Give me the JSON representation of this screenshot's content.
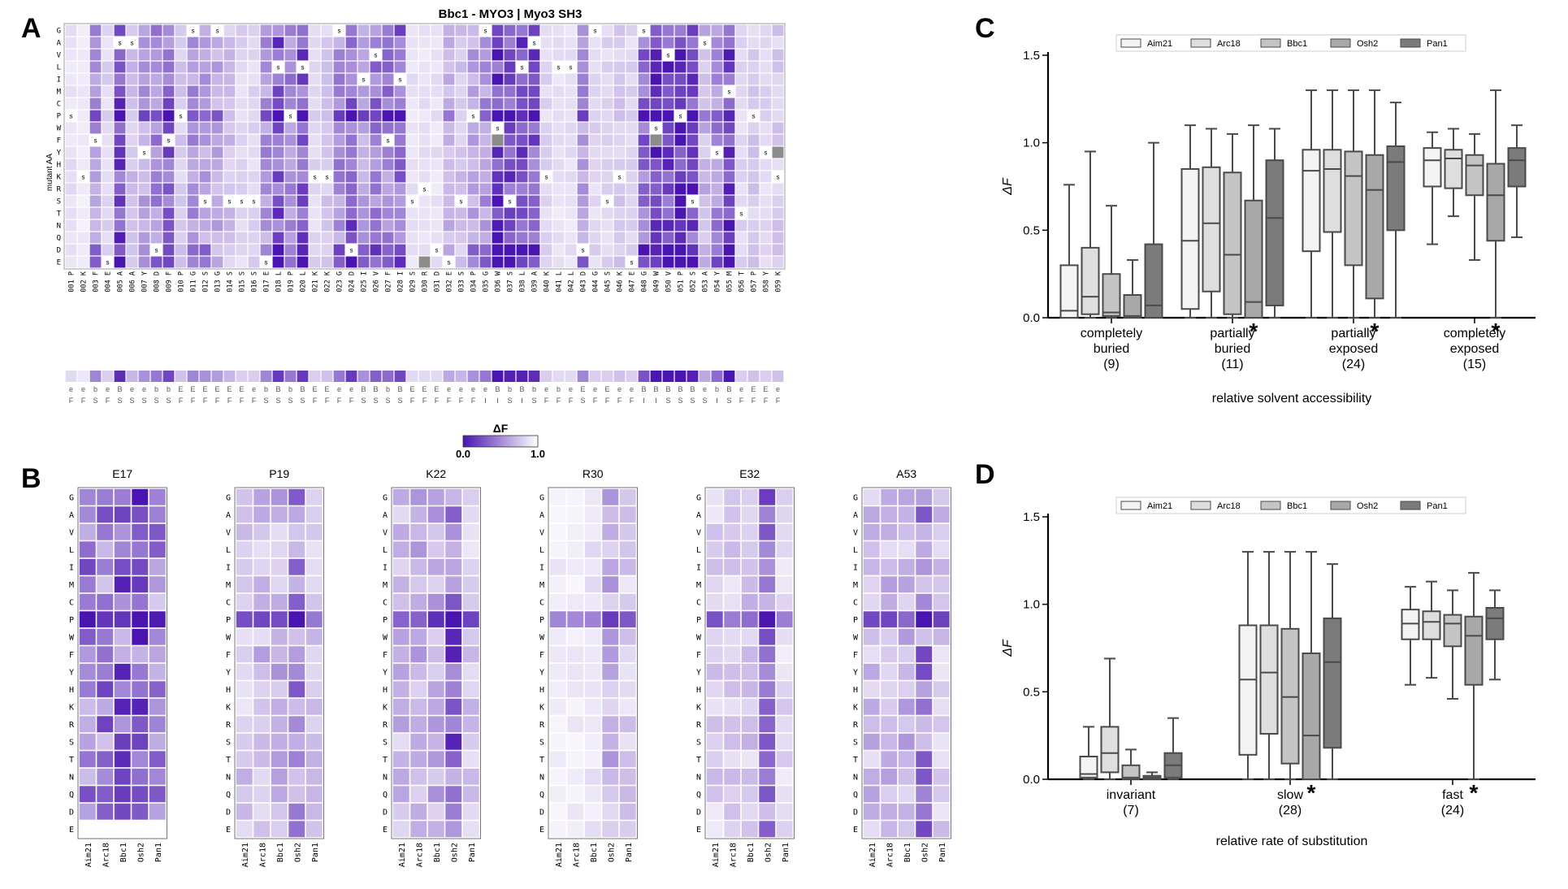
{
  "panel_letters": {
    "a": "A",
    "b": "B",
    "c": "C",
    "d": "D"
  },
  "colors": {
    "low": "#4a14b0",
    "high": "#ffffff",
    "missing": "#8c8c8c",
    "box_fill": [
      "#f3f3f3",
      "#dedede",
      "#c4c4c4",
      "#a8a8a8",
      "#7b7b7b"
    ],
    "box_stroke": "#4a4a4a"
  },
  "chart_data": [
    {
      "type": "heatmap",
      "id": "A",
      "title": "Bbc1 - MYO3 | Myo3 SH3",
      "ylabel": "mutant AA",
      "rows": [
        "G",
        "A",
        "V",
        "L",
        "I",
        "M",
        "C",
        "P",
        "W",
        "F",
        "Y",
        "H",
        "K",
        "R",
        "S",
        "T",
        "N",
        "Q",
        "D",
        "E"
      ],
      "columns": [
        "001 P",
        "002 K",
        "003 F",
        "004 E",
        "005 A",
        "006 A",
        "007 Y",
        "008 D",
        "009 F",
        "010 P",
        "011 G",
        "012 S",
        "013 G",
        "014 S",
        "015 S",
        "016 S",
        "017 E",
        "018 L",
        "019 P",
        "020 L",
        "021 K",
        "022 K",
        "023 G",
        "024 D",
        "025 I",
        "026 V",
        "027 F",
        "028 I",
        "029 S",
        "030 R",
        "031 D",
        "032 E",
        "033 S",
        "034 P",
        "035 G",
        "036 W",
        "037 S",
        "038 L",
        "039 A",
        "040 K",
        "041 L",
        "042 L",
        "043 D",
        "044 G",
        "045 S",
        "046 K",
        "047 E",
        "048 G",
        "049 W",
        "050 V",
        "051 P",
        "052 S",
        "053 A",
        "054 Y",
        "055 M",
        "056 T",
        "057 P",
        "058 Y",
        "059 K"
      ],
      "column_profile": [
        0.15,
        0.1,
        0.5,
        0.2,
        0.85,
        0.3,
        0.45,
        0.55,
        0.75,
        0.25,
        0.5,
        0.45,
        0.4,
        0.3,
        0.2,
        0.2,
        0.5,
        0.8,
        0.55,
        0.8,
        0.2,
        0.25,
        0.55,
        0.8,
        0.45,
        0.65,
        0.6,
        0.75,
        0.15,
        0.15,
        0.15,
        0.35,
        0.3,
        0.45,
        0.55,
        0.95,
        0.9,
        0.9,
        0.85,
        0.2,
        0.15,
        0.15,
        0.5,
        0.2,
        0.2,
        0.25,
        0.2,
        0.7,
        0.95,
        0.95,
        0.95,
        0.9,
        0.35,
        0.6,
        0.95,
        0.2,
        0.25,
        0.2,
        0.25
      ],
      "wild_type_marker": "s",
      "secondary_labels": {
        "bottom": [
          "e",
          "e",
          "b",
          "e",
          "B",
          "e",
          "e",
          "b",
          "b",
          "E",
          "E",
          "E",
          "E",
          "E",
          "E",
          "e",
          "b",
          "B",
          "b",
          "B",
          "E",
          "E",
          "e",
          "e",
          "B",
          "B",
          "b",
          "B",
          "E",
          "E",
          "E",
          "e",
          "e",
          "e",
          "e",
          "B",
          "b",
          "B",
          "b",
          "e",
          "b",
          "e",
          "E",
          "e",
          "E",
          "e",
          "e",
          "B",
          "B",
          "B",
          "B",
          "B",
          "e",
          "b",
          "B",
          "e",
          "E",
          "E",
          "e"
        ],
        "top": [
          "F",
          "F",
          "S",
          "F",
          "S",
          "S",
          "S",
          "S",
          "S",
          "F",
          "F",
          "F",
          "F",
          "F",
          "F",
          "F",
          "S",
          "S",
          "S",
          "S",
          "F",
          "F",
          "F",
          "F",
          "S",
          "S",
          "S",
          "S",
          "F",
          "F",
          "F",
          "F",
          "F",
          "F",
          "I",
          "I",
          "S",
          "I",
          "S",
          "F",
          "F",
          "F",
          "S",
          "F",
          "F",
          "F",
          "F",
          "I",
          "I",
          "S",
          "S",
          "S",
          "S",
          "I",
          "S",
          "F",
          "F",
          "F",
          "F"
        ]
      },
      "legend": {
        "title": "ΔF",
        "min": "0.0",
        "max": "1.0"
      }
    },
    {
      "type": "heatmap",
      "id": "B",
      "rows": [
        "G",
        "A",
        "V",
        "L",
        "I",
        "M",
        "C",
        "P",
        "W",
        "F",
        "Y",
        "H",
        "K",
        "R",
        "S",
        "T",
        "N",
        "Q",
        "D",
        "E"
      ],
      "columns": [
        "Aim21",
        "Arc18",
        "Bbc1",
        "Osh2",
        "Pan1"
      ],
      "panels": [
        {
          "title": "E17",
          "profile": [
            0.7,
            0.7,
            0.8,
            0.9,
            0.6
          ]
        },
        {
          "title": "P19",
          "profile": [
            0.3,
            0.35,
            0.4,
            0.6,
            0.3
          ]
        },
        {
          "title": "K22",
          "profile": [
            0.35,
            0.4,
            0.45,
            0.8,
            0.3
          ]
        },
        {
          "title": "R30",
          "profile": [
            0.1,
            0.1,
            0.15,
            0.4,
            0.25
          ]
        },
        {
          "title": "E32",
          "profile": [
            0.25,
            0.25,
            0.3,
            0.7,
            0.2
          ]
        },
        {
          "title": "A53",
          "profile": [
            0.35,
            0.35,
            0.4,
            0.65,
            0.3
          ]
        }
      ]
    },
    {
      "type": "box",
      "id": "C",
      "ylabel": "ΔF",
      "ylim": [
        0,
        1.5
      ],
      "yticks": [
        "0.0",
        "0.5",
        "1.0",
        "1.5"
      ],
      "legend": [
        "Aim21",
        "Arc18",
        "Bbc1",
        "Osh2",
        "Pan1"
      ],
      "legend_position": "top",
      "xlabel": "relative solvent accessibility",
      "groups": [
        {
          "label": "completely",
          "label2": "buried",
          "n": "(9)",
          "star_on": "",
          "boxes": [
            [
              0,
              0.0,
              0.04,
              0.3,
              0.76
            ],
            [
              0,
              0.02,
              0.12,
              0.4,
              0.95
            ],
            [
              0,
              0.01,
              0.03,
              0.25,
              0.64
            ],
            [
              0,
              0.0,
              0.01,
              0.13,
              0.33
            ],
            [
              0,
              0.0,
              0.07,
              0.42,
              1.0
            ]
          ]
        },
        {
          "label": "partially",
          "label2": "buried",
          "n": "(11)",
          "star_on": "Osh2",
          "boxes": [
            [
              0,
              0.05,
              0.44,
              0.85,
              1.1
            ],
            [
              0,
              0.15,
              0.54,
              0.86,
              1.08
            ],
            [
              0,
              0.02,
              0.36,
              0.83,
              1.05
            ],
            [
              0,
              0.0,
              0.09,
              0.67,
              1.1
            ],
            [
              0,
              0.07,
              0.57,
              0.9,
              1.08
            ]
          ]
        },
        {
          "label": "partially",
          "label2": "exposed",
          "n": "(24)",
          "star_on": "Osh2",
          "boxes": [
            [
              0,
              0.38,
              0.84,
              0.96,
              1.3
            ],
            [
              0,
              0.49,
              0.85,
              0.96,
              1.3
            ],
            [
              0,
              0.3,
              0.81,
              0.95,
              1.3
            ],
            [
              0,
              0.11,
              0.73,
              0.93,
              1.3
            ],
            [
              0,
              0.5,
              0.89,
              0.98,
              1.23
            ]
          ]
        },
        {
          "label": "completely",
          "label2": "exposed",
          "n": "(15)",
          "star_on": "Osh2",
          "boxes": [
            [
              0.42,
              0.75,
              0.9,
              0.97,
              1.06
            ],
            [
              0.58,
              0.74,
              0.91,
              0.96,
              1.08
            ],
            [
              0.33,
              0.7,
              0.87,
              0.93,
              1.05
            ],
            [
              0,
              0.44,
              0.7,
              0.88,
              1.3
            ],
            [
              0.46,
              0.75,
              0.9,
              0.97,
              1.1
            ]
          ]
        }
      ]
    },
    {
      "type": "box",
      "id": "D",
      "ylabel": "ΔF",
      "ylim": [
        0,
        1.5
      ],
      "yticks": [
        "0.0",
        "0.5",
        "1.0",
        "1.5"
      ],
      "legend": [
        "Aim21",
        "Arc18",
        "Bbc1",
        "Osh2",
        "Pan1"
      ],
      "legend_position": "top",
      "xlabel": "relative rate of substitution",
      "groups": [
        {
          "label": "invariant",
          "label2": "",
          "n": "(7)",
          "star_on": "",
          "boxes": [
            [
              0,
              0.01,
              0.03,
              0.13,
              0.3
            ],
            [
              0,
              0.04,
              0.15,
              0.3,
              0.69
            ],
            [
              0,
              0.0,
              0.01,
              0.08,
              0.17
            ],
            [
              0,
              0.0,
              0.01,
              0.02,
              0.04
            ],
            [
              0,
              0.01,
              0.08,
              0.15,
              0.35
            ]
          ]
        },
        {
          "label": "slow",
          "label2": "",
          "n": "(28)",
          "star_on": "Osh2",
          "boxes": [
            [
              0,
              0.14,
              0.57,
              0.88,
              1.3
            ],
            [
              0,
              0.26,
              0.61,
              0.88,
              1.3
            ],
            [
              0,
              0.09,
              0.47,
              0.86,
              1.3
            ],
            [
              0,
              0.0,
              0.25,
              0.72,
              1.3
            ],
            [
              0,
              0.18,
              0.67,
              0.92,
              1.23
            ]
          ]
        },
        {
          "label": "fast",
          "label2": "",
          "n": "(24)",
          "star_on": "Osh2",
          "boxes": [
            [
              0.54,
              0.8,
              0.89,
              0.97,
              1.1
            ],
            [
              0.58,
              0.8,
              0.9,
              0.96,
              1.13
            ],
            [
              0.46,
              0.76,
              0.89,
              0.94,
              1.08
            ],
            [
              0,
              0.54,
              0.82,
              0.93,
              1.18
            ],
            [
              0.57,
              0.8,
              0.92,
              0.98,
              1.08
            ]
          ]
        }
      ]
    }
  ]
}
